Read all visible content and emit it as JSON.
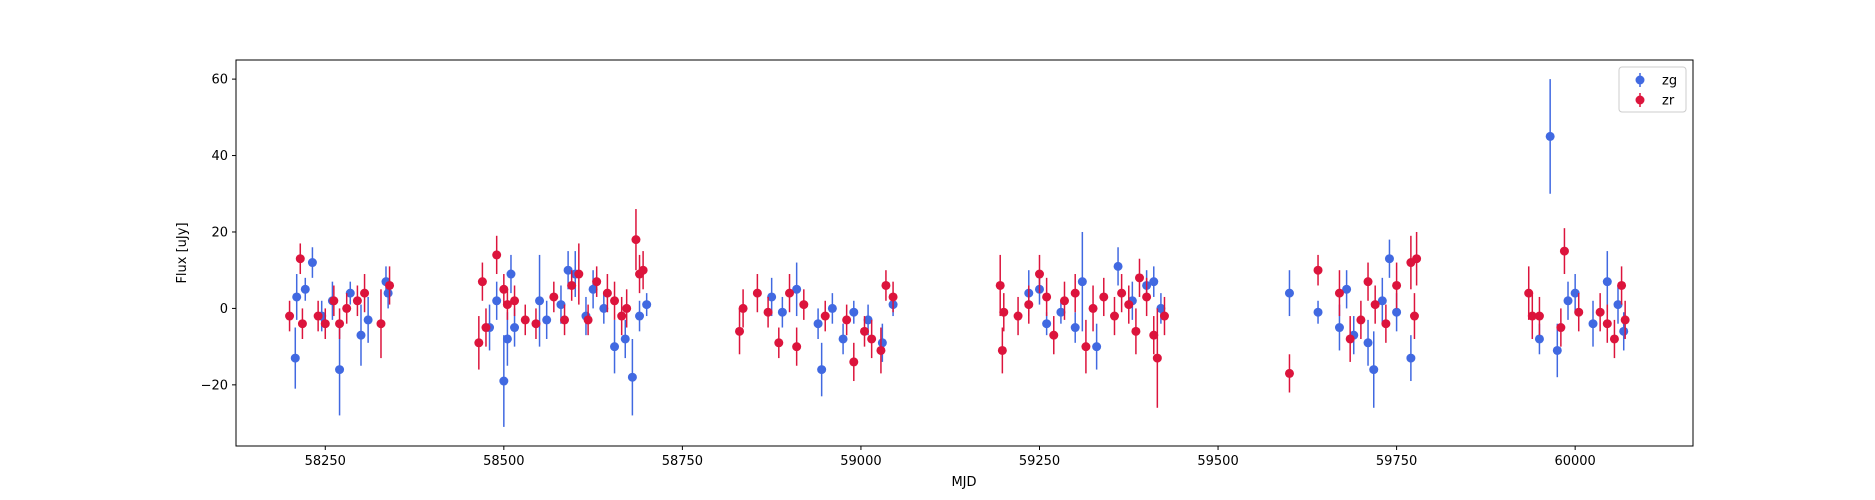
{
  "chart_data": {
    "type": "scatter",
    "title": "",
    "xlabel": "MJD",
    "ylabel": "Flux [uJy]",
    "xlim": [
      58125,
      60165
    ],
    "ylim": [
      -36,
      65
    ],
    "xticks": [
      58250,
      58500,
      58750,
      59000,
      59250,
      59500,
      59750,
      60000
    ],
    "yticks": [
      -20,
      0,
      20,
      40,
      60
    ],
    "grid": false,
    "legend_position": "top-right",
    "series": [
      {
        "name": "zg",
        "color": "#4169e1",
        "points": [
          [
            58208,
            -13,
            8
          ],
          [
            58210,
            3,
            6
          ],
          [
            58222,
            5,
            3
          ],
          [
            58232,
            12,
            4
          ],
          [
            58245,
            -2,
            4
          ],
          [
            58260,
            2,
            5
          ],
          [
            58270,
            -16,
            12
          ],
          [
            58285,
            4,
            3
          ],
          [
            58300,
            -7,
            8
          ],
          [
            58310,
            -3,
            6
          ],
          [
            58335,
            7,
            4
          ],
          [
            58338,
            4,
            4
          ],
          [
            58480,
            -5,
            6
          ],
          [
            58490,
            2,
            5
          ],
          [
            58500,
            -19,
            12
          ],
          [
            58505,
            -8,
            7
          ],
          [
            58510,
            9,
            5
          ],
          [
            58515,
            -5,
            5
          ],
          [
            58550,
            2,
            12
          ],
          [
            58560,
            -3,
            5
          ],
          [
            58580,
            1,
            5
          ],
          [
            58590,
            10,
            5
          ],
          [
            58600,
            9,
            6
          ],
          [
            58615,
            -2,
            5
          ],
          [
            58625,
            5,
            5
          ],
          [
            58640,
            0,
            4
          ],
          [
            58655,
            -10,
            7
          ],
          [
            58670,
            -8,
            5
          ],
          [
            58680,
            -18,
            10
          ],
          [
            58690,
            -2,
            4
          ],
          [
            58700,
            1,
            3
          ],
          [
            58875,
            3,
            5
          ],
          [
            58890,
            -1,
            4
          ],
          [
            58910,
            5,
            7
          ],
          [
            58940,
            -4,
            4
          ],
          [
            58945,
            -16,
            7
          ],
          [
            58960,
            0,
            4
          ],
          [
            58975,
            -8,
            4
          ],
          [
            58990,
            -1,
            3
          ],
          [
            59010,
            -3,
            4
          ],
          [
            59030,
            -9,
            5
          ],
          [
            59045,
            1,
            3
          ],
          [
            59235,
            4,
            6
          ],
          [
            59250,
            5,
            4
          ],
          [
            59260,
            -4,
            3
          ],
          [
            59280,
            -1,
            3
          ],
          [
            59300,
            -5,
            4
          ],
          [
            59310,
            7,
            13
          ],
          [
            59330,
            -10,
            6
          ],
          [
            59360,
            11,
            5
          ],
          [
            59380,
            2,
            5
          ],
          [
            59400,
            6,
            4
          ],
          [
            59410,
            7,
            4
          ],
          [
            59420,
            0,
            4
          ],
          [
            59600,
            4,
            6
          ],
          [
            59640,
            -1,
            3
          ],
          [
            59670,
            -5,
            6
          ],
          [
            59680,
            5,
            5
          ],
          [
            59690,
            -7,
            5
          ],
          [
            59710,
            -9,
            6
          ],
          [
            59718,
            -16,
            10
          ],
          [
            59730,
            2,
            6
          ],
          [
            59740,
            13,
            5
          ],
          [
            59750,
            -1,
            5
          ],
          [
            59770,
            -13,
            6
          ],
          [
            59950,
            -8,
            4
          ],
          [
            59965,
            45,
            15
          ],
          [
            59975,
            -11,
            7
          ],
          [
            59990,
            2,
            5
          ],
          [
            60000,
            4,
            5
          ],
          [
            60025,
            -4,
            6
          ],
          [
            60045,
            7,
            8
          ],
          [
            60060,
            1,
            5
          ],
          [
            60068,
            -6,
            5
          ]
        ]
      },
      {
        "name": "zr",
        "color": "#dc143c",
        "points": [
          [
            58200,
            -2,
            4
          ],
          [
            58215,
            13,
            4
          ],
          [
            58218,
            -4,
            4
          ],
          [
            58240,
            -2,
            4
          ],
          [
            58250,
            -4,
            4
          ],
          [
            58262,
            2,
            4
          ],
          [
            58270,
            -4,
            4
          ],
          [
            58280,
            0,
            4
          ],
          [
            58295,
            2,
            4
          ],
          [
            58305,
            4,
            5
          ],
          [
            58328,
            -4,
            9
          ],
          [
            58340,
            6,
            5
          ],
          [
            58465,
            -9,
            7
          ],
          [
            58470,
            7,
            5
          ],
          [
            58475,
            -5,
            5
          ],
          [
            58490,
            14,
            5
          ],
          [
            58500,
            5,
            4
          ],
          [
            58505,
            1,
            4
          ],
          [
            58515,
            2,
            4
          ],
          [
            58530,
            -3,
            4
          ],
          [
            58545,
            -4,
            4
          ],
          [
            58570,
            3,
            4
          ],
          [
            58585,
            -3,
            4
          ],
          [
            58595,
            6,
            4
          ],
          [
            58605,
            9,
            8
          ],
          [
            58618,
            -3,
            4
          ],
          [
            58630,
            7,
            4
          ],
          [
            58645,
            4,
            5
          ],
          [
            58655,
            2,
            5
          ],
          [
            58665,
            -2,
            5
          ],
          [
            58672,
            0,
            5
          ],
          [
            58685,
            18,
            8
          ],
          [
            58690,
            9,
            5
          ],
          [
            58695,
            10,
            5
          ],
          [
            58830,
            -6,
            6
          ],
          [
            58835,
            0,
            5
          ],
          [
            58855,
            4,
            5
          ],
          [
            58870,
            -1,
            4
          ],
          [
            58885,
            -9,
            4
          ],
          [
            58900,
            4,
            5
          ],
          [
            58910,
            -10,
            5
          ],
          [
            58920,
            1,
            4
          ],
          [
            58950,
            -2,
            4
          ],
          [
            58980,
            -3,
            4
          ],
          [
            58990,
            -14,
            5
          ],
          [
            59005,
            -6,
            4
          ],
          [
            59015,
            -8,
            5
          ],
          [
            59028,
            -11,
            6
          ],
          [
            59035,
            6,
            4
          ],
          [
            59045,
            3,
            4
          ],
          [
            59195,
            6,
            8
          ],
          [
            59198,
            -11,
            6
          ],
          [
            59200,
            -1,
            5
          ],
          [
            59220,
            -2,
            5
          ],
          [
            59235,
            1,
            5
          ],
          [
            59250,
            9,
            5
          ],
          [
            59260,
            3,
            5
          ],
          [
            59270,
            -7,
            5
          ],
          [
            59285,
            2,
            5
          ],
          [
            59300,
            4,
            5
          ],
          [
            59315,
            -10,
            7
          ],
          [
            59325,
            0,
            6
          ],
          [
            59340,
            3,
            5
          ],
          [
            59355,
            -2,
            5
          ],
          [
            59365,
            4,
            5
          ],
          [
            59375,
            1,
            5
          ],
          [
            59385,
            -6,
            6
          ],
          [
            59390,
            8,
            5
          ],
          [
            59400,
            3,
            5
          ],
          [
            59410,
            -7,
            5
          ],
          [
            59415,
            -13,
            13
          ],
          [
            59425,
            -2,
            5
          ],
          [
            59600,
            -17,
            5
          ],
          [
            59640,
            10,
            4
          ],
          [
            59670,
            4,
            6
          ],
          [
            59685,
            -8,
            6
          ],
          [
            59700,
            -3,
            5
          ],
          [
            59710,
            7,
            5
          ],
          [
            59720,
            1,
            5
          ],
          [
            59735,
            -4,
            5
          ],
          [
            59750,
            6,
            6
          ],
          [
            59770,
            12,
            7
          ],
          [
            59775,
            -2,
            6
          ],
          [
            59778,
            13,
            7
          ],
          [
            59935,
            4,
            7
          ],
          [
            59940,
            -2,
            6
          ],
          [
            59950,
            -2,
            5
          ],
          [
            59980,
            -5,
            5
          ],
          [
            59985,
            15,
            6
          ],
          [
            60005,
            -1,
            5
          ],
          [
            60035,
            -1,
            5
          ],
          [
            60045,
            -4,
            5
          ],
          [
            60055,
            -8,
            5
          ],
          [
            60065,
            6,
            5
          ],
          [
            60070,
            -3,
            5
          ]
        ]
      }
    ]
  }
}
